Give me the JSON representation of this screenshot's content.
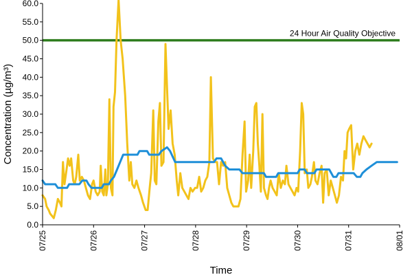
{
  "chart_data": {
    "type": "line",
    "xlabel": "Time",
    "ylabel": "Concentration (µg/m³)",
    "ylim": [
      0,
      60
    ],
    "yticks": [
      0,
      5,
      10,
      15,
      20,
      25,
      30,
      35,
      40,
      45,
      50,
      55,
      60
    ],
    "xlim": [
      0,
      7
    ],
    "xtick_labels": [
      "07/25",
      "07/26",
      "07/27",
      "07/28",
      "07/29",
      "07/30",
      "07/31",
      "08/01"
    ],
    "grid": false,
    "reference_line": {
      "label": "24 Hour Air Quality Objective",
      "value": 50,
      "color": "#2e7d1e"
    },
    "series": [
      {
        "color": "#f2c21b",
        "points": [
          [
            0.0,
            8
          ],
          [
            0.05,
            7
          ],
          [
            0.08,
            5
          ],
          [
            0.12,
            4
          ],
          [
            0.15,
            3
          ],
          [
            0.18,
            2.5
          ],
          [
            0.22,
            1.8
          ],
          [
            0.26,
            4
          ],
          [
            0.3,
            7
          ],
          [
            0.34,
            6
          ],
          [
            0.37,
            5
          ],
          [
            0.4,
            17
          ],
          [
            0.43,
            11
          ],
          [
            0.46,
            14
          ],
          [
            0.5,
            18
          ],
          [
            0.53,
            16
          ],
          [
            0.56,
            18
          ],
          [
            0.6,
            12
          ],
          [
            0.63,
            11
          ],
          [
            0.66,
            13
          ],
          [
            0.7,
            19
          ],
          [
            0.73,
            12
          ],
          [
            0.77,
            13
          ],
          [
            0.81,
            12
          ],
          [
            0.85,
            10
          ],
          [
            0.89,
            8
          ],
          [
            0.93,
            7
          ],
          [
            0.97,
            11
          ],
          [
            1.0,
            12
          ],
          [
            1.04,
            9
          ],
          [
            1.08,
            8
          ],
          [
            1.12,
            9
          ],
          [
            1.14,
            16
          ],
          [
            1.17,
            9
          ],
          [
            1.2,
            8
          ],
          [
            1.23,
            15
          ],
          [
            1.25,
            8
          ],
          [
            1.28,
            11
          ],
          [
            1.31,
            34
          ],
          [
            1.34,
            10
          ],
          [
            1.37,
            8
          ],
          [
            1.39,
            32
          ],
          [
            1.42,
            36
          ],
          [
            1.45,
            50
          ],
          [
            1.49,
            61
          ],
          [
            1.53,
            50
          ],
          [
            1.57,
            45
          ],
          [
            1.62,
            35
          ],
          [
            1.66,
            22
          ],
          [
            1.7,
            12
          ],
          [
            1.73,
            17
          ],
          [
            1.76,
            11
          ],
          [
            1.8,
            10
          ],
          [
            1.84,
            12
          ],
          [
            1.88,
            10
          ],
          [
            1.93,
            8
          ],
          [
            1.97,
            6
          ],
          [
            2.02,
            4
          ],
          [
            2.06,
            4
          ],
          [
            2.1,
            10
          ],
          [
            2.13,
            14
          ],
          [
            2.17,
            31
          ],
          [
            2.2,
            12
          ],
          [
            2.23,
            11
          ],
          [
            2.27,
            28
          ],
          [
            2.3,
            33
          ],
          [
            2.33,
            16
          ],
          [
            2.37,
            17
          ],
          [
            2.41,
            49
          ],
          [
            2.44,
            37
          ],
          [
            2.47,
            26
          ],
          [
            2.51,
            31
          ],
          [
            2.55,
            22
          ],
          [
            2.59,
            19
          ],
          [
            2.63,
            12
          ],
          [
            2.66,
            8
          ],
          [
            2.7,
            14
          ],
          [
            2.74,
            10
          ],
          [
            2.78,
            9
          ],
          [
            2.82,
            8
          ],
          [
            2.86,
            7
          ],
          [
            2.9,
            10
          ],
          [
            2.94,
            9
          ],
          [
            2.99,
            10
          ],
          [
            3.03,
            10
          ],
          [
            3.07,
            13
          ],
          [
            3.11,
            9
          ],
          [
            3.15,
            10
          ],
          [
            3.19,
            12
          ],
          [
            3.23,
            13
          ],
          [
            3.27,
            17
          ],
          [
            3.3,
            40
          ],
          [
            3.34,
            18
          ],
          [
            3.38,
            17
          ],
          [
            3.42,
            17
          ],
          [
            3.46,
            11
          ],
          [
            3.5,
            17
          ],
          [
            3.54,
            16
          ],
          [
            3.58,
            17
          ],
          [
            3.62,
            10
          ],
          [
            3.66,
            8
          ],
          [
            3.7,
            6
          ],
          [
            3.74,
            5
          ],
          [
            3.8,
            5
          ],
          [
            3.84,
            5
          ],
          [
            3.88,
            7
          ],
          [
            3.92,
            19
          ],
          [
            3.96,
            28
          ],
          [
            3.99,
            9
          ],
          [
            4.03,
            12
          ],
          [
            4.06,
            19
          ],
          [
            4.09,
            10
          ],
          [
            4.13,
            20
          ],
          [
            4.16,
            32
          ],
          [
            4.19,
            33
          ],
          [
            4.22,
            22
          ],
          [
            4.25,
            16
          ],
          [
            4.28,
            9
          ],
          [
            4.31,
            30
          ],
          [
            4.34,
            10
          ],
          [
            4.38,
            8
          ],
          [
            4.41,
            7
          ],
          [
            4.44,
            10
          ],
          [
            4.47,
            12
          ],
          [
            4.51,
            10
          ],
          [
            4.55,
            9
          ],
          [
            4.59,
            8
          ],
          [
            4.63,
            14
          ],
          [
            4.67,
            10
          ],
          [
            4.71,
            12
          ],
          [
            4.75,
            11
          ],
          [
            4.78,
            16
          ],
          [
            4.82,
            11
          ],
          [
            4.86,
            10
          ],
          [
            4.9,
            9
          ],
          [
            4.94,
            8
          ],
          [
            4.98,
            10
          ],
          [
            5.01,
            9
          ],
          [
            5.05,
            20
          ],
          [
            5.08,
            33
          ],
          [
            5.11,
            30
          ],
          [
            5.14,
            14
          ],
          [
            5.18,
            15
          ],
          [
            5.21,
            10
          ],
          [
            5.25,
            11
          ],
          [
            5.28,
            13
          ],
          [
            5.32,
            17
          ],
          [
            5.35,
            12
          ],
          [
            5.39,
            11
          ],
          [
            5.43,
            14
          ],
          [
            5.47,
            16
          ],
          [
            5.5,
            6
          ],
          [
            5.53,
            14
          ],
          [
            5.57,
            15
          ],
          [
            5.61,
            8
          ],
          [
            5.65,
            12
          ],
          [
            5.69,
            10
          ],
          [
            5.73,
            8
          ],
          [
            5.77,
            6
          ],
          [
            5.81,
            8
          ],
          [
            5.85,
            13
          ],
          [
            5.89,
            12
          ],
          [
            5.92,
            20
          ],
          [
            5.95,
            18
          ],
          [
            5.98,
            25
          ],
          [
            6.01,
            26
          ],
          [
            6.05,
            27
          ],
          [
            6.09,
            15
          ],
          [
            6.13,
            20
          ],
          [
            6.17,
            22
          ],
          [
            6.21,
            19
          ],
          [
            6.25,
            22
          ],
          [
            6.29,
            24
          ],
          [
            6.33,
            23
          ],
          [
            6.37,
            22
          ],
          [
            6.41,
            21
          ],
          [
            6.45,
            22
          ]
        ]
      },
      {
        "color": "#1e8fd8",
        "points": [
          [
            0.0,
            12
          ],
          [
            0.05,
            11
          ],
          [
            0.25,
            11
          ],
          [
            0.3,
            10
          ],
          [
            0.48,
            10
          ],
          [
            0.52,
            11
          ],
          [
            0.72,
            11
          ],
          [
            0.78,
            12
          ],
          [
            0.86,
            12
          ],
          [
            0.9,
            11
          ],
          [
            0.96,
            10
          ],
          [
            1.16,
            10
          ],
          [
            1.2,
            11
          ],
          [
            1.3,
            11
          ],
          [
            1.34,
            12
          ],
          [
            1.4,
            13
          ],
          [
            1.46,
            15
          ],
          [
            1.52,
            17
          ],
          [
            1.58,
            19
          ],
          [
            1.86,
            19
          ],
          [
            1.9,
            20
          ],
          [
            2.05,
            20
          ],
          [
            2.09,
            19
          ],
          [
            2.28,
            19
          ],
          [
            2.33,
            20
          ],
          [
            2.44,
            21
          ],
          [
            2.5,
            20
          ],
          [
            2.6,
            17
          ],
          [
            3.36,
            17
          ],
          [
            3.41,
            18
          ],
          [
            3.5,
            18
          ],
          [
            3.58,
            16
          ],
          [
            3.66,
            15
          ],
          [
            3.86,
            15
          ],
          [
            3.92,
            14
          ],
          [
            4.34,
            14
          ],
          [
            4.38,
            13
          ],
          [
            4.58,
            13
          ],
          [
            4.62,
            14
          ],
          [
            5.0,
            14
          ],
          [
            5.04,
            15
          ],
          [
            5.14,
            15
          ],
          [
            5.18,
            14
          ],
          [
            5.33,
            14
          ],
          [
            5.37,
            15
          ],
          [
            5.62,
            15
          ],
          [
            5.66,
            14
          ],
          [
            5.7,
            13
          ],
          [
            5.76,
            13
          ],
          [
            5.8,
            14
          ],
          [
            6.1,
            14
          ],
          [
            6.16,
            13
          ],
          [
            6.23,
            13
          ],
          [
            6.27,
            14
          ],
          [
            6.35,
            15
          ],
          [
            6.45,
            16
          ],
          [
            6.55,
            17
          ],
          [
            6.95,
            17
          ]
        ]
      }
    ]
  }
}
